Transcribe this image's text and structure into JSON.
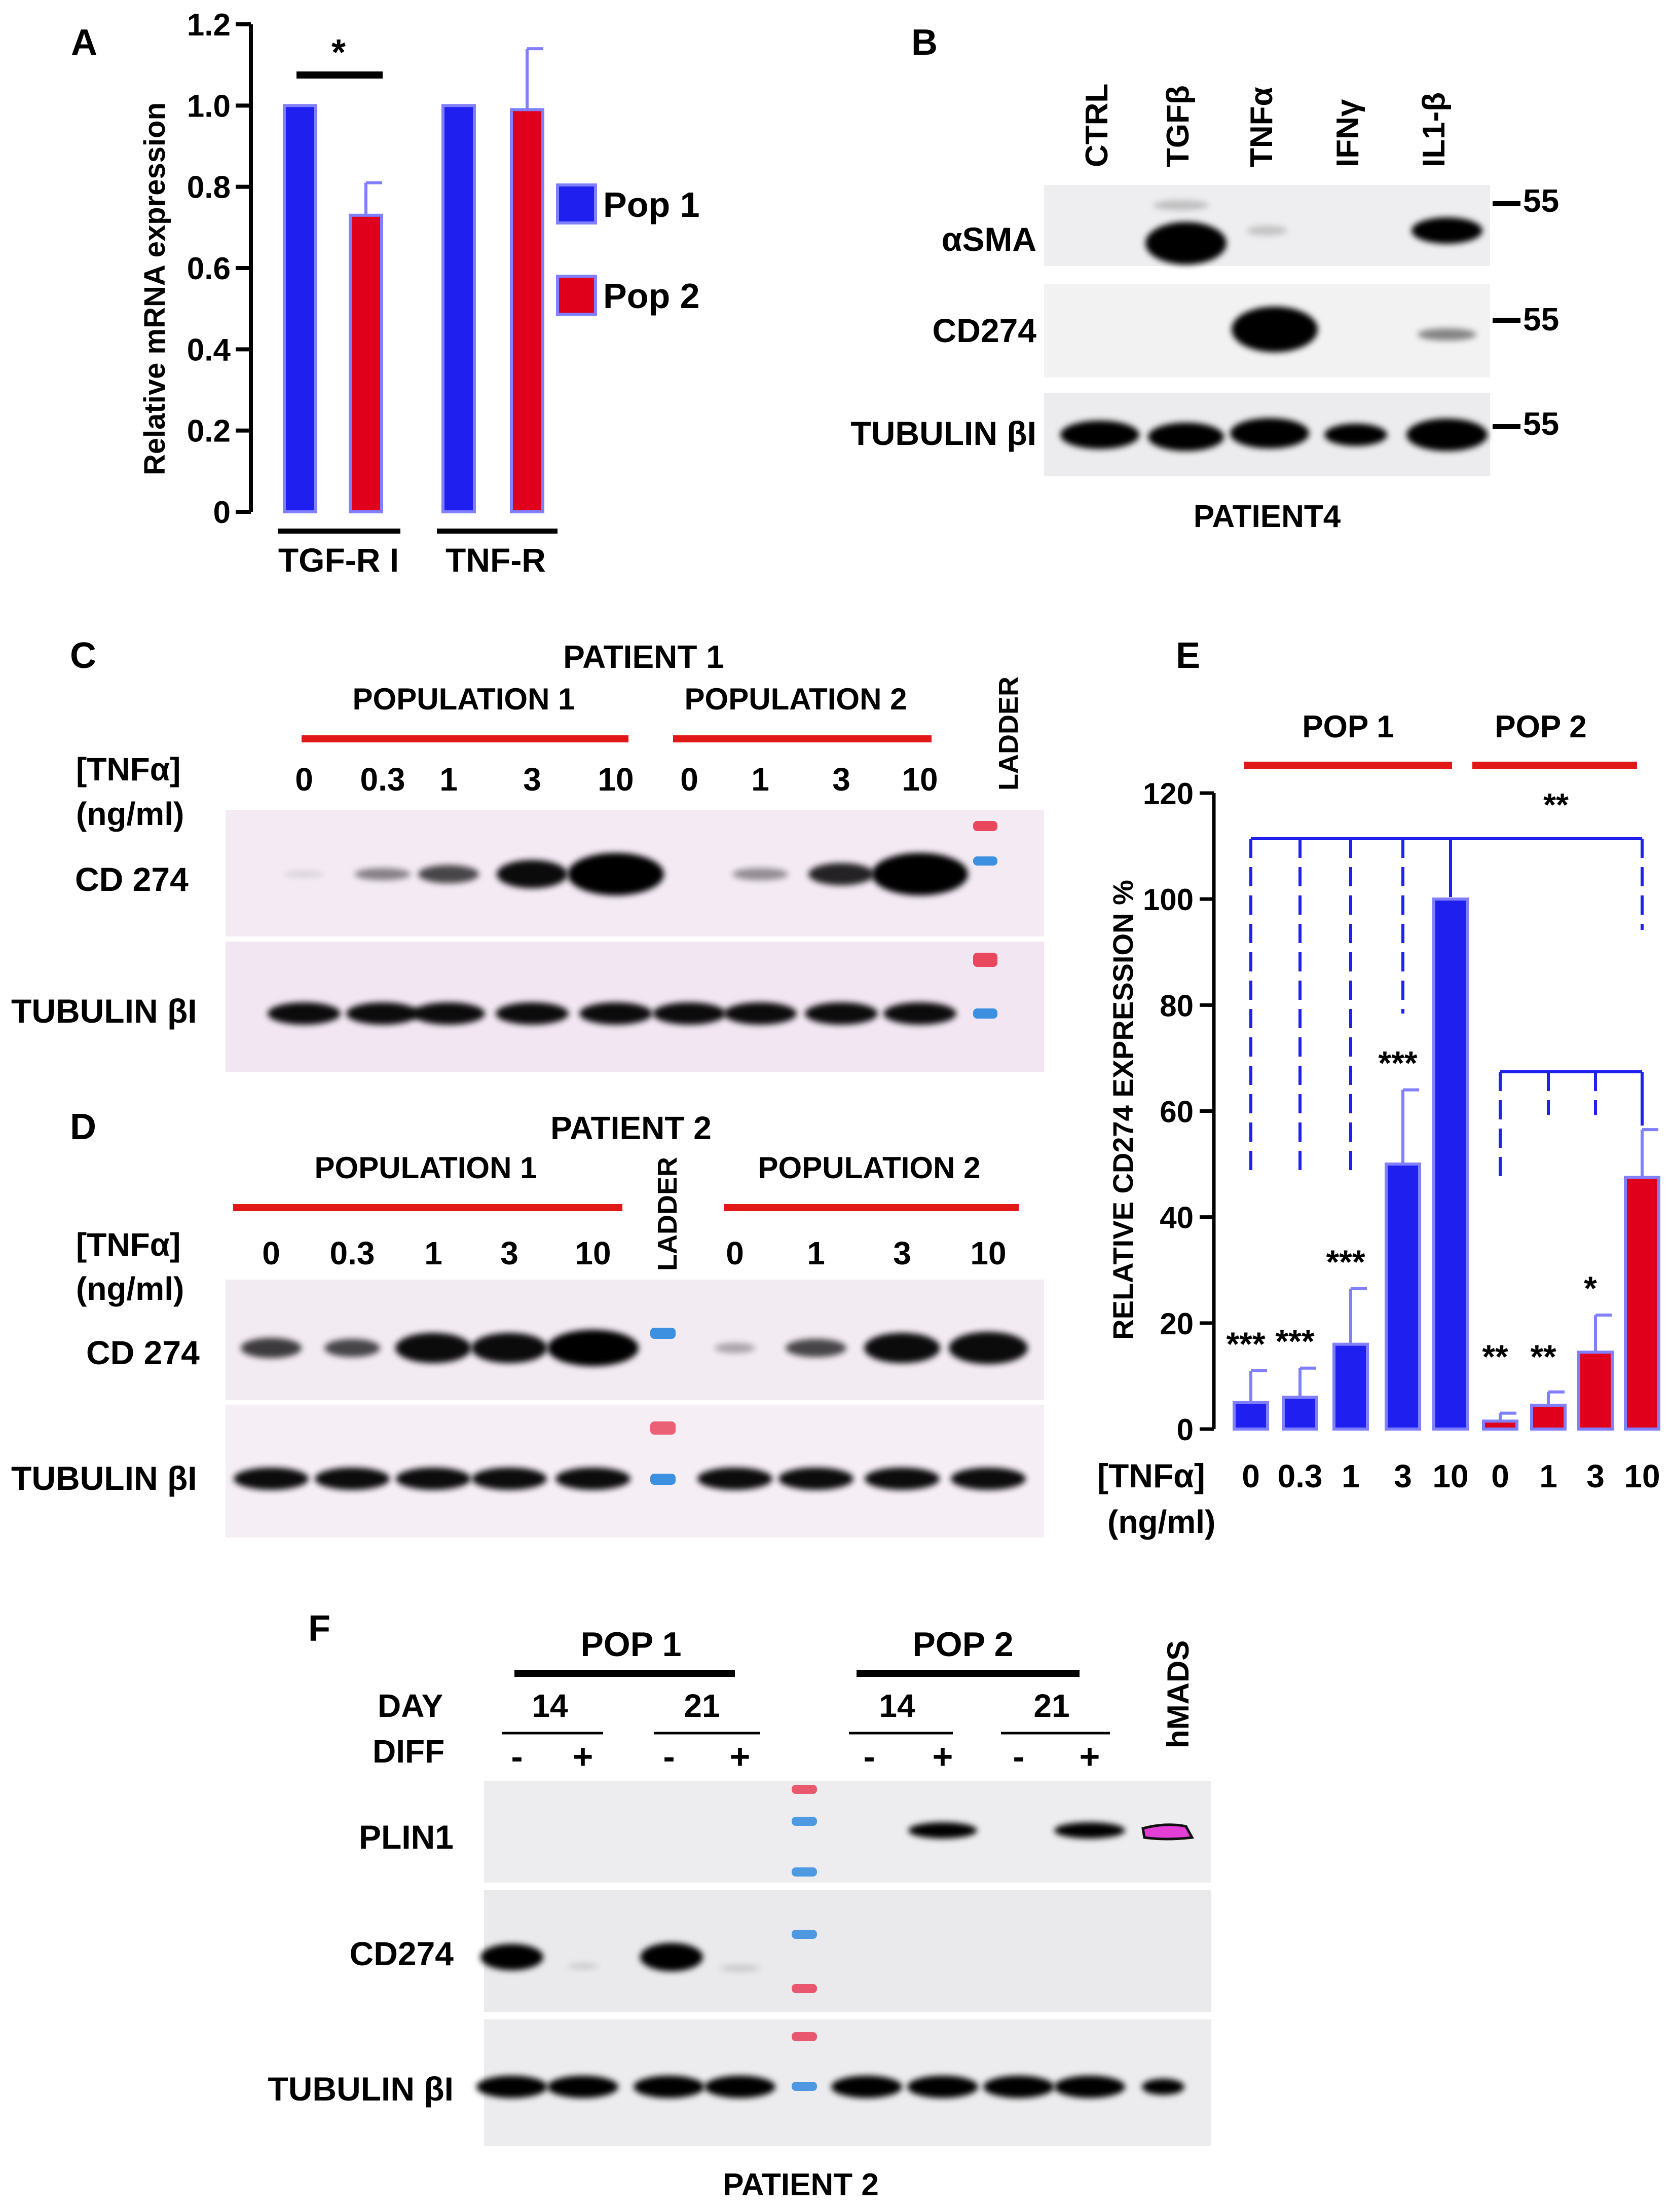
{
  "colors": {
    "pop1": "#1f1ff0",
    "pop2": "#e0001b",
    "bar_edge": "#7f7fff",
    "redline": "#e01818",
    "blot_bg": "#eeeef0",
    "blot_bg_pink": "#f3e9f3"
  },
  "panelA": {
    "letter": "A",
    "ylabel": "Relative  mRNA expression",
    "legend": [
      "Pop 1",
      "Pop 2"
    ],
    "groups": [
      "TGF-R I",
      "TNF-R"
    ],
    "star": "*",
    "chart_data": {
      "type": "bar",
      "categories": [
        "TGF-R I",
        "TNF-R"
      ],
      "series": [
        {
          "name": "Pop 1",
          "values": [
            1.0,
            1.0
          ],
          "err": [
            0,
            0
          ]
        },
        {
          "name": "Pop 2",
          "values": [
            0.73,
            0.99
          ],
          "err": [
            0.08,
            0.15
          ]
        }
      ],
      "ylabel": "Relative  mRNA expression",
      "ylim": [
        0,
        1.2
      ],
      "yticks": [
        "0",
        "0.2",
        "0.4",
        "0.6",
        "0.8",
        "1.0",
        "1.2"
      ],
      "legend": "right"
    }
  },
  "panelB": {
    "letter": "B",
    "lanes": [
      "CTRL",
      "TGFβ",
      "TNFα",
      "IFNγ",
      "IL1-β"
    ],
    "rows": [
      "αSMA",
      "CD274",
      "TUBULIN βI"
    ],
    "markers": [
      "55",
      "55",
      "55"
    ],
    "footer": "PATIENT4"
  },
  "panelC": {
    "letter": "C",
    "title": "PATIENT 1",
    "pop1": "POPULATION 1",
    "pop2": "POPULATION 2",
    "ladder": "LADDER",
    "treat1": "[TNFα]",
    "treat2": "(ng/ml)",
    "doses": [
      "0",
      "0.3",
      "1",
      "3",
      "10",
      "0",
      "1",
      "3",
      "10"
    ],
    "rows": [
      "CD 274",
      "TUBULIN βI"
    ]
  },
  "panelD": {
    "letter": "D",
    "title": "PATIENT 2",
    "pop1": "POPULATION 1",
    "pop2": "POPULATION 2",
    "ladder": "LADDER",
    "treat1": "[TNFα]",
    "treat2": "(ng/ml)",
    "doses": [
      "0",
      "0.3",
      "1",
      "3",
      "10",
      "0",
      "1",
      "3",
      "10"
    ],
    "rows": [
      "CD 274",
      "TUBULIN βI"
    ]
  },
  "panelE": {
    "letter": "E",
    "pop1": "POP 1",
    "pop2": "POP 2",
    "ylabel": "RELATIVE CD274 EXPRESSION %",
    "treat1": "[TNFα]",
    "treat2": "(ng/ml)",
    "top_sig": "**",
    "chart_data": {
      "type": "bar",
      "categories": [
        "0",
        "0.3",
        "1",
        "3",
        "10",
        "0",
        "1",
        "3",
        "10"
      ],
      "values": [
        5,
        6,
        16,
        50,
        100,
        1.5,
        4.5,
        14.5,
        47.5
      ],
      "err": [
        6,
        5.5,
        10.5,
        14,
        0,
        1.5,
        2.5,
        7,
        9
      ],
      "groups": [
        "POP 1",
        "POP 1",
        "POP 1",
        "POP 1",
        "POP 1",
        "POP 2",
        "POP 2",
        "POP 2",
        "POP 2"
      ],
      "sig": [
        "***",
        "***",
        "***",
        "***",
        "",
        "**",
        "**",
        "*",
        ""
      ],
      "ylabel": "RELATIVE CD274 EXPRESSION %",
      "ylim": [
        0,
        120
      ],
      "yticks": [
        "0",
        "20",
        "40",
        "60",
        "80",
        "100",
        "120"
      ]
    }
  },
  "panelF": {
    "letter": "F",
    "pop1": "POP 1",
    "pop2": "POP 2",
    "day_label": "DAY",
    "diff_label": "DIFF",
    "days": [
      "14",
      "21",
      "14",
      "21"
    ],
    "diffs": [
      "-",
      "+",
      "-",
      "+",
      "-",
      "+",
      "-",
      "+"
    ],
    "hmads": "hMADS",
    "rows": [
      "PLIN1",
      "CD274",
      "TUBULIN βI"
    ],
    "footer": "PATIENT 2"
  }
}
